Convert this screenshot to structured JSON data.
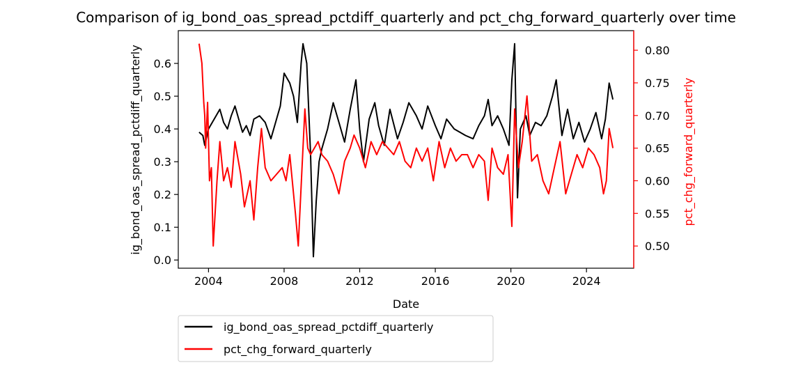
{
  "chart_data": {
    "type": "line",
    "title": "Comparison of ig_bond_oas_spread_pctdiff_quarterly and pct_chg_forward_quarterly over time",
    "xlabel": "Date",
    "ylabel_left": "ig_bond_oas_spread_pctdiff_quarterly",
    "ylabel_right": "pct_chg_forward_quarterly",
    "xlim": [
      2002.4,
      2026.5
    ],
    "ylim_left": [
      -0.025,
      0.7
    ],
    "ylim_right": [
      0.466,
      0.83
    ],
    "x_ticks": [
      2004,
      2008,
      2012,
      2016,
      2020,
      2024
    ],
    "x_tick_labels": [
      "2004",
      "2008",
      "2012",
      "2016",
      "2020",
      "2024"
    ],
    "y_ticks_left": [
      0.0,
      0.1,
      0.2,
      0.3,
      0.4,
      0.5,
      0.6
    ],
    "y_tick_labels_left": [
      "0.0",
      "0.1",
      "0.2",
      "0.3",
      "0.4",
      "0.5",
      "0.6"
    ],
    "y_ticks_right": [
      0.5,
      0.55,
      0.6,
      0.65,
      0.7,
      0.75,
      0.8
    ],
    "y_tick_labels_right": [
      "0.50",
      "0.55",
      "0.60",
      "0.65",
      "0.70",
      "0.75",
      "0.80"
    ],
    "grid": false,
    "legend_position": "below-left",
    "colors": {
      "left_axis": "#000000",
      "right_axis": "#ff0000"
    },
    "series": [
      {
        "name": "ig_bond_oas_spread_pctdiff_quarterly",
        "axis": "left",
        "color": "#000000",
        "x": [
          2003.5,
          2003.7,
          2003.8,
          2004.0,
          2004.2,
          2004.4,
          2004.6,
          2004.8,
          2005.0,
          2005.2,
          2005.4,
          2005.6,
          2005.8,
          2006.0,
          2006.2,
          2006.4,
          2006.7,
          2007.0,
          2007.3,
          2007.6,
          2007.8,
          2008.0,
          2008.3,
          2008.5,
          2008.7,
          2008.9,
          2009.0,
          2009.2,
          2009.4,
          2009.55,
          2009.7,
          2009.85,
          2010.0,
          2010.3,
          2010.6,
          2010.9,
          2011.2,
          2011.5,
          2011.8,
          2012.0,
          2012.2,
          2012.5,
          2012.8,
          2013.0,
          2013.3,
          2013.6,
          2014.0,
          2014.3,
          2014.6,
          2015.0,
          2015.3,
          2015.6,
          2016.0,
          2016.3,
          2016.6,
          2017.0,
          2017.3,
          2017.6,
          2018.0,
          2018.3,
          2018.6,
          2018.8,
          2019.0,
          2019.3,
          2019.6,
          2019.9,
          2020.05,
          2020.2,
          2020.35,
          2020.5,
          2020.8,
          2021.0,
          2021.3,
          2021.6,
          2021.9,
          2022.2,
          2022.4,
          2022.7,
          2023.0,
          2023.3,
          2023.6,
          2023.9,
          2024.2,
          2024.5,
          2024.8,
          2025.0,
          2025.2,
          2025.4
        ],
        "values": [
          0.39,
          0.38,
          0.35,
          0.4,
          0.42,
          0.44,
          0.46,
          0.42,
          0.4,
          0.44,
          0.47,
          0.43,
          0.39,
          0.41,
          0.38,
          0.43,
          0.44,
          0.42,
          0.37,
          0.43,
          0.47,
          0.57,
          0.54,
          0.5,
          0.42,
          0.6,
          0.66,
          0.6,
          0.32,
          0.01,
          0.18,
          0.3,
          0.34,
          0.4,
          0.48,
          0.42,
          0.36,
          0.46,
          0.55,
          0.4,
          0.3,
          0.43,
          0.48,
          0.41,
          0.35,
          0.46,
          0.37,
          0.42,
          0.48,
          0.44,
          0.4,
          0.47,
          0.41,
          0.37,
          0.43,
          0.4,
          0.39,
          0.38,
          0.37,
          0.41,
          0.44,
          0.49,
          0.41,
          0.44,
          0.4,
          0.35,
          0.55,
          0.66,
          0.19,
          0.4,
          0.44,
          0.38,
          0.42,
          0.41,
          0.44,
          0.5,
          0.55,
          0.38,
          0.46,
          0.37,
          0.42,
          0.36,
          0.4,
          0.45,
          0.37,
          0.43,
          0.54,
          0.49
        ]
      },
      {
        "name": "pct_chg_forward_quarterly",
        "axis": "right",
        "color": "#ff0000",
        "x": [
          2003.5,
          2003.65,
          2003.75,
          2003.8,
          2003.85,
          2003.95,
          2004.05,
          2004.15,
          2004.25,
          2004.35,
          2004.45,
          2004.6,
          2004.8,
          2005.0,
          2005.2,
          2005.4,
          2005.7,
          2005.9,
          2006.2,
          2006.4,
          2006.6,
          2006.8,
          2007.0,
          2007.3,
          2007.6,
          2007.9,
          2008.1,
          2008.3,
          2008.6,
          2008.75,
          2008.95,
          2009.1,
          2009.25,
          2009.4,
          2009.6,
          2009.8,
          2010.0,
          2010.3,
          2010.6,
          2010.9,
          2011.2,
          2011.5,
          2011.7,
          2012.0,
          2012.3,
          2012.6,
          2012.9,
          2013.2,
          2013.5,
          2013.8,
          2014.1,
          2014.4,
          2014.7,
          2015.0,
          2015.3,
          2015.6,
          2015.9,
          2016.2,
          2016.5,
          2016.8,
          2017.1,
          2017.4,
          2017.7,
          2018.0,
          2018.3,
          2018.6,
          2018.8,
          2019.0,
          2019.3,
          2019.6,
          2019.85,
          2020.05,
          2020.2,
          2020.4,
          2020.6,
          2020.85,
          2021.1,
          2021.4,
          2021.7,
          2022.0,
          2022.3,
          2022.6,
          2022.9,
          2023.2,
          2023.5,
          2023.8,
          2024.1,
          2024.4,
          2024.7,
          2024.9,
          2025.05,
          2025.2,
          2025.4
        ],
        "values": [
          0.81,
          0.78,
          0.72,
          0.7,
          0.65,
          0.72,
          0.6,
          0.62,
          0.5,
          0.55,
          0.6,
          0.66,
          0.6,
          0.62,
          0.59,
          0.66,
          0.61,
          0.56,
          0.6,
          0.54,
          0.62,
          0.68,
          0.62,
          0.6,
          0.61,
          0.62,
          0.6,
          0.64,
          0.55,
          0.5,
          0.62,
          0.71,
          0.65,
          0.64,
          0.65,
          0.66,
          0.64,
          0.63,
          0.61,
          0.58,
          0.63,
          0.65,
          0.67,
          0.65,
          0.62,
          0.66,
          0.64,
          0.66,
          0.65,
          0.64,
          0.66,
          0.63,
          0.62,
          0.65,
          0.63,
          0.65,
          0.6,
          0.66,
          0.62,
          0.65,
          0.63,
          0.64,
          0.64,
          0.62,
          0.64,
          0.63,
          0.57,
          0.65,
          0.62,
          0.61,
          0.64,
          0.53,
          0.71,
          0.62,
          0.66,
          0.73,
          0.63,
          0.64,
          0.6,
          0.58,
          0.62,
          0.66,
          0.58,
          0.61,
          0.64,
          0.62,
          0.65,
          0.64,
          0.62,
          0.58,
          0.6,
          0.68,
          0.65
        ]
      }
    ]
  }
}
